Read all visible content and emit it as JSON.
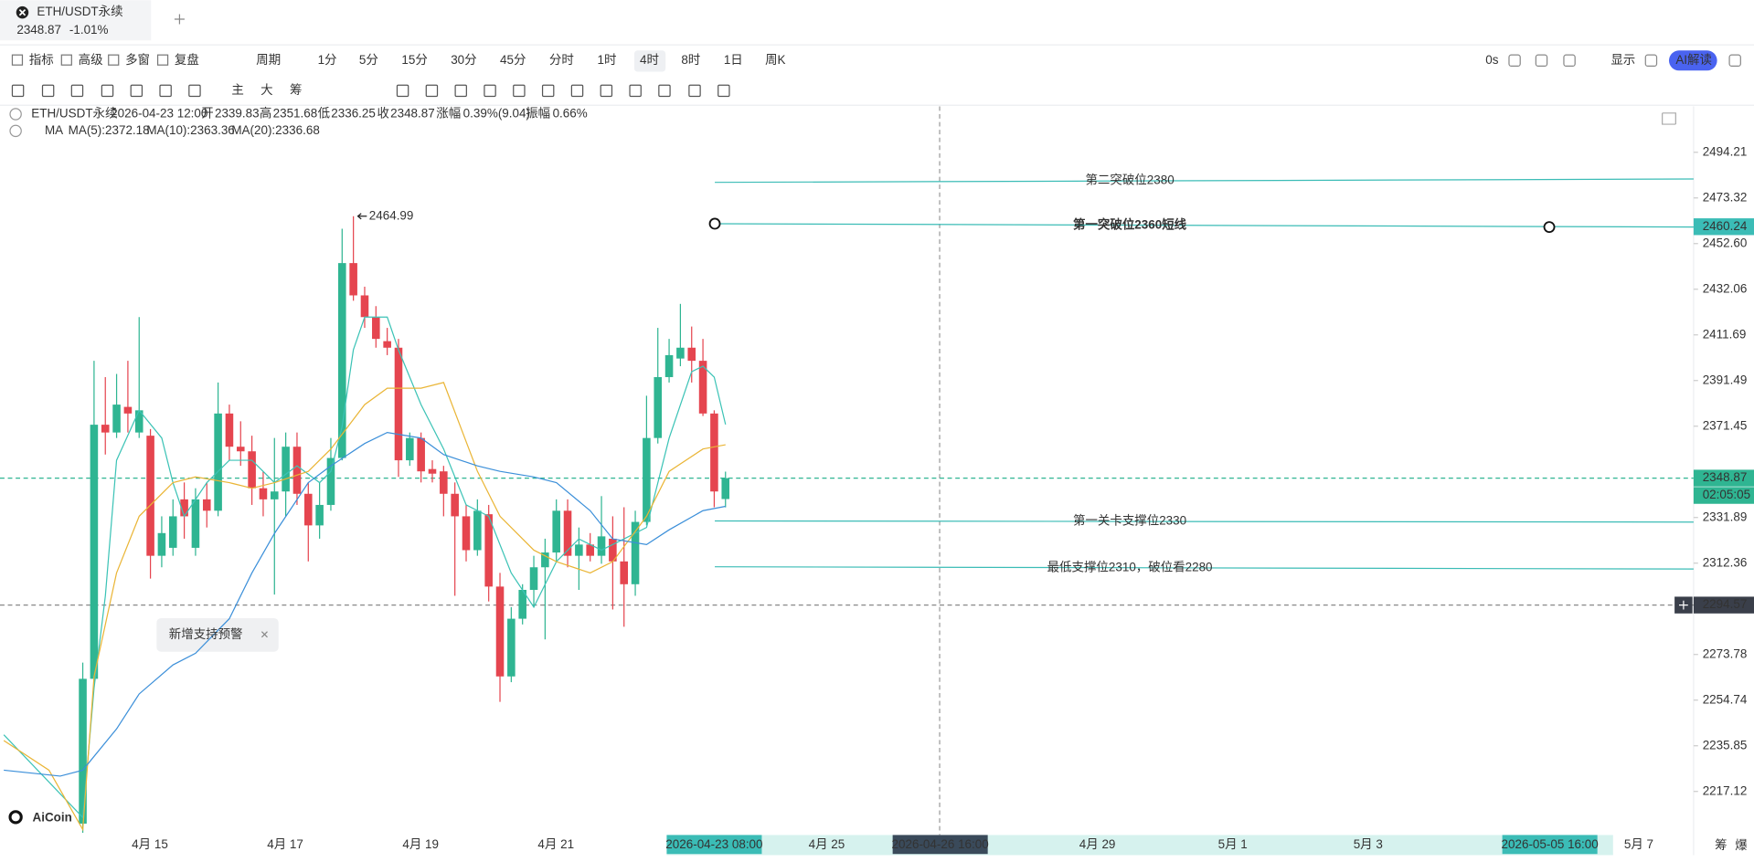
{
  "tab": {
    "symbol": "ETH/USDT永续",
    "price": "2348.87",
    "change": "-1.01%"
  },
  "toolbar": {
    "left": [
      "指标",
      "高级",
      "多窗",
      "复盘",
      "周期",
      "1分",
      "5分",
      "15分",
      "30分",
      "45分",
      "分时",
      "1时",
      "4时",
      "8时",
      "1日",
      "周K"
    ],
    "right": [
      "0s",
      "显示",
      "AI解读"
    ],
    "tools": [
      "主",
      "大",
      "筹"
    ]
  },
  "info": {
    "symbol": "ETH/USDT永续",
    "time": "2026-04-23 12:00",
    "fields": [
      {
        "label": "开",
        "value": "2339.83"
      },
      {
        "label": "高",
        "value": "2351.68"
      },
      {
        "label": "低",
        "value": "2336.25"
      },
      {
        "label": "收",
        "value": "2348.87"
      },
      {
        "label": "涨幅",
        "value": "0.39%(9.04)"
      },
      {
        "label": "振幅",
        "value": "0.66%"
      }
    ],
    "ma": "MA"
  },
  "popup": "新增支持预警",
  "watermark": "AiCoin",
  "corner": [
    "筹",
    "爆"
  ],
  "drawings": [
    "第二突破位2380",
    "第一突破位2360短线",
    "第一关卡支撑位2330",
    "最低支撑位2310，破位看2280"
  ],
  "chart_data": {
    "type": "candlestick",
    "log_scale": true,
    "up_color": "#2fb592",
    "down_color": "#e5454f",
    "open": [
      2204.0,
      2263.6,
      2372.1,
      2368.7,
      2379.9,
      2368.7,
      2367.3,
      2315.5,
      2318.9,
      2339.7,
      2318.9,
      2339.7,
      2334.8,
      2377.0,
      2362.5,
      2360.5,
      2344.5,
      2339.7,
      2343.1,
      2362.5,
      2342.1,
      2328.5,
      2337.3,
      2357.6,
      2443.8,
      2429.3,
      2419.6,
      2408.9,
      2406.0,
      2356.6,
      2366.3,
      2352.8,
      2351.8,
      2342.1,
      2332.4,
      2317.9,
      2333.3,
      2302.4,
      2264.6,
      2288.8,
      2301.0,
      2310.6,
      2316.9,
      2334.8,
      2315.5,
      2320.3,
      2315.5,
      2322.8,
      2313.1,
      2303.4,
      2330.0,
      2366.3,
      2393.0,
      2401.2,
      2406.0,
      2400.2,
      2377.0,
      2339.83
    ],
    "high": [
      2270.4,
      2400.2,
      2393.0,
      2394.4,
      2400.2,
      2419.6,
      2370.2,
      2332.4,
      2339.7,
      2347.0,
      2344.5,
      2347.0,
      2390.6,
      2380.9,
      2373.6,
      2367.3,
      2351.8,
      2366.3,
      2368.7,
      2368.7,
      2347.0,
      2347.0,
      2366.3,
      2459.3,
      2464.99,
      2433.2,
      2424.5,
      2414.8,
      2409.9,
      2368.7,
      2368.7,
      2356.6,
      2354.2,
      2347.0,
      2337.3,
      2339.7,
      2337.3,
      2308.2,
      2293.7,
      2303.4,
      2315.5,
      2322.8,
      2339.7,
      2339.7,
      2327.6,
      2325.2,
      2341.1,
      2332.4,
      2336.3,
      2334.8,
      2384.8,
      2414.8,
      2409.9,
      2425.5,
      2415.4,
      2409.9,
      2378.4,
      2351.68
    ],
    "low": [
      2199.2,
      2262.2,
      2359.1,
      2366.3,
      2368.7,
      2366.3,
      2305.8,
      2310.6,
      2315.5,
      2322.8,
      2315.5,
      2327.6,
      2332.4,
      2356.6,
      2354.2,
      2337.3,
      2332.4,
      2299.0,
      2332.4,
      2337.3,
      2313.1,
      2322.8,
      2334.8,
      2356.6,
      2426.9,
      2414.8,
      2406.0,
      2402.7,
      2349.4,
      2354.2,
      2347.0,
      2347.0,
      2332.4,
      2298.5,
      2313.1,
      2315.5,
      2296.1,
      2254.0,
      2262.2,
      2286.4,
      2293.7,
      2280.1,
      2313.1,
      2310.6,
      2301.0,
      2313.1,
      2312.1,
      2292.7,
      2285.4,
      2298.5,
      2328.5,
      2363.9,
      2390.6,
      2397.8,
      2390.6,
      2375.9,
      2336.3,
      2336.25
    ],
    "close": [
      2263.6,
      2372.1,
      2368.7,
      2380.9,
      2377.0,
      2378.4,
      2315.5,
      2325.2,
      2332.4,
      2332.4,
      2339.7,
      2334.8,
      2377.0,
      2362.5,
      2360.5,
      2344.5,
      2339.7,
      2343.1,
      2362.5,
      2342.1,
      2328.5,
      2337.3,
      2357.6,
      2443.8,
      2429.3,
      2419.6,
      2409.9,
      2406.0,
      2356.6,
      2366.3,
      2351.8,
      2350.8,
      2342.1,
      2332.4,
      2317.9,
      2334.8,
      2302.4,
      2264.6,
      2288.8,
      2301.0,
      2310.6,
      2316.9,
      2334.8,
      2315.5,
      2320.3,
      2315.5,
      2323.8,
      2313.1,
      2303.4,
      2330.0,
      2366.3,
      2393.0,
      2402.7,
      2406.0,
      2400.2,
      2377.0,
      2343.1,
      2348.87
    ],
    "series": [
      {
        "name": "MA(5):2372.18",
        "color": "#3cc3b6",
        "x": [
          -7,
          0,
          1,
          2,
          3,
          5,
          7,
          8,
          9,
          11,
          13,
          15,
          17,
          19,
          21,
          22,
          23,
          24,
          25,
          27,
          28,
          30,
          32,
          34,
          36,
          38,
          40,
          42,
          44,
          46,
          48,
          50,
          52,
          54,
          55,
          56,
          57
        ],
        "values": [
          2240.4,
          2206.5,
          2259.8,
          2298.5,
          2356.6,
          2378.4,
          2366.3,
          2346.9,
          2332.4,
          2346.9,
          2356.6,
          2356.6,
          2346.9,
          2354.2,
          2346.9,
          2351.8,
          2371.2,
          2405.1,
          2419.6,
          2419.6,
          2405.1,
          2380.9,
          2361.5,
          2337.3,
          2332.4,
          2308.2,
          2293.7,
          2313.0,
          2322.7,
          2317.9,
          2322.7,
          2327.6,
          2366.3,
          2395.4,
          2397.8,
          2393.0,
          2372.18
        ]
      },
      {
        "name": "MA(10):2363.36",
        "color": "#eab536",
        "x": [
          -7,
          -3,
          0,
          1,
          3,
          5,
          8,
          10,
          13,
          15,
          17,
          20,
          22,
          25,
          27,
          30,
          32,
          35,
          37,
          40,
          42,
          45,
          47,
          50,
          52,
          55,
          57
        ],
        "values": [
          2238.0,
          2225.8,
          2201.6,
          2264.6,
          2308.2,
          2332.4,
          2346.9,
          2349.4,
          2346.9,
          2344.5,
          2346.9,
          2351.8,
          2361.5,
          2380.9,
          2388.1,
          2388.1,
          2390.6,
          2351.8,
          2332.4,
          2317.9,
          2313.0,
          2308.2,
          2313.0,
          2332.4,
          2351.8,
          2361.5,
          2363.36
        ]
      },
      {
        "name": "MA(20):2336.68",
        "color": "#3b8fd9",
        "x": [
          -7,
          -2,
          0,
          3,
          5,
          8,
          10,
          13,
          15,
          17,
          20,
          22,
          25,
          27,
          30,
          32,
          35,
          37,
          40,
          42,
          45,
          47,
          50,
          52,
          55,
          57
        ],
        "values": [
          2225.8,
          2223.4,
          2225.8,
          2242.8,
          2257.3,
          2269.4,
          2274.3,
          2288.8,
          2308.2,
          2325.1,
          2346.9,
          2354.2,
          2363.9,
          2368.7,
          2366.3,
          2359.1,
          2354.2,
          2351.8,
          2349.4,
          2346.9,
          2334.8,
          2322.7,
          2320.3,
          2326.6,
          2334.8,
          2336.68
        ]
      }
    ],
    "ylim": [
      2200.3,
      2515.4
    ],
    "yticks": [
      2494.21,
      2473.32,
      {
        "value": 2452.6,
        "label": "2452.60"
      },
      2432.06,
      2411.69,
      2391.49,
      2371.45,
      2331.89,
      2312.36,
      2273.78,
      2254.74,
      2235.85,
      2217.12
    ],
    "price_tags": [
      2460.24,
      2348.87,
      2294.57
    ],
    "countdown": "02:05:05",
    "xlabels": [
      "4月 15",
      "4月 17",
      "4月 19",
      "4月 21",
      "4月 25",
      "4月 29",
      "5月 1",
      "5月 3",
      "5月 7"
    ],
    "time_boxes": [
      "2026-04-23 08:00",
      "2026-04-26 16:00",
      "2026-05-05 16:00"
    ]
  }
}
